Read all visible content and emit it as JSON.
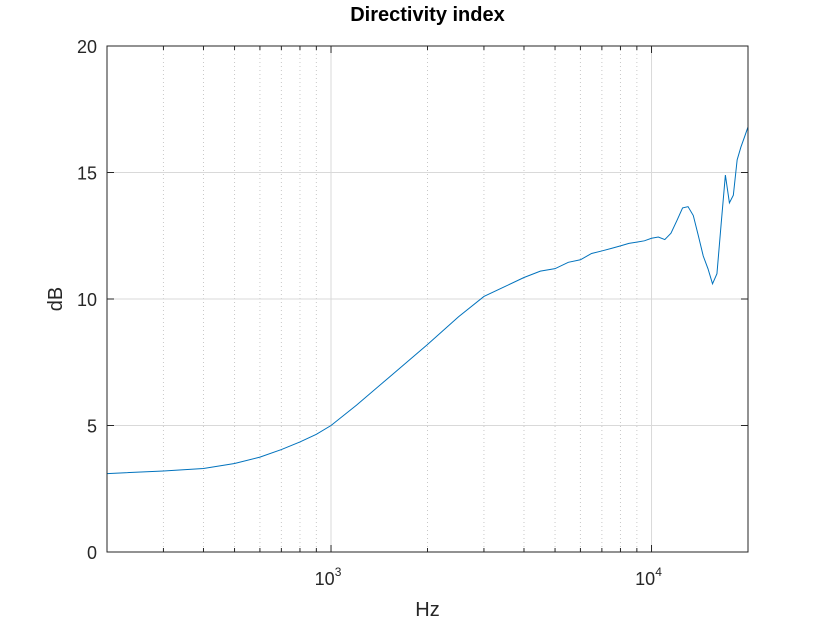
{
  "chart_data": {
    "type": "line",
    "title": "Directivity index",
    "xlabel": "Hz",
    "ylabel": "dB",
    "xscale": "log",
    "xlim": [
      200,
      20000
    ],
    "ylim": [
      0,
      20
    ],
    "grid": true,
    "x_ticks": [
      {
        "value": 1000,
        "base": "10",
        "exp": "3"
      },
      {
        "value": 10000,
        "base": "10",
        "exp": "4"
      }
    ],
    "y_ticks": [
      0,
      5,
      10,
      15,
      20
    ],
    "series": [
      {
        "color": "#0072bd",
        "x": [
          200,
          300,
          400,
          500,
          600,
          700,
          800,
          900,
          1000,
          1200,
          1500,
          2000,
          2500,
          3000,
          3500,
          4000,
          4500,
          5000,
          5500,
          6000,
          6500,
          7000,
          7500,
          8000,
          8500,
          9000,
          9500,
          10000,
          10500,
          11000,
          11500,
          12000,
          12500,
          13000,
          13500,
          14000,
          14500,
          15000,
          15500,
          16000,
          16500,
          17000,
          17500,
          18000,
          18500,
          19000,
          19500,
          20000
        ],
        "y": [
          3.1,
          3.2,
          3.3,
          3.5,
          3.75,
          4.05,
          4.35,
          4.65,
          5.0,
          5.8,
          6.85,
          8.2,
          9.3,
          10.1,
          10.5,
          10.85,
          11.1,
          11.2,
          11.45,
          11.55,
          11.8,
          11.9,
          12.0,
          12.1,
          12.2,
          12.25,
          12.3,
          12.4,
          12.45,
          12.35,
          12.6,
          13.1,
          13.6,
          13.65,
          13.3,
          12.5,
          11.7,
          11.2,
          10.6,
          11.0,
          13.0,
          14.9,
          13.8,
          14.1,
          15.5,
          16.0,
          16.4,
          16.8
        ]
      }
    ]
  }
}
